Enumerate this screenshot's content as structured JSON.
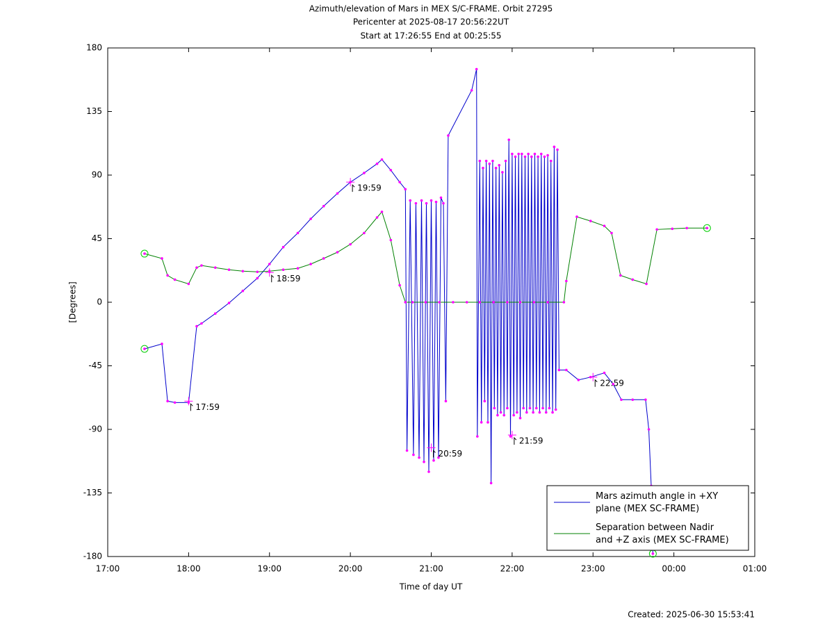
{
  "chart_data": {
    "type": "line",
    "title": [
      "Azimuth/elevation of Mars in MEX S/C-FRAME.  Orbit 27295",
      "Pericenter at 2025-08-17 20:56:22UT",
      "Start at 17:26:55 End at 00:25:55"
    ],
    "x_label": "Time of day UT",
    "y_label": "[Degrees]",
    "footer": "Created: 2025-06-30 15:53:41",
    "xlim": [
      17,
      25
    ],
    "xticks": [
      {
        "value": 17,
        "label": "17:00"
      },
      {
        "value": 18,
        "label": "18:00"
      },
      {
        "value": 19,
        "label": "19:00"
      },
      {
        "value": 20,
        "label": "20:00"
      },
      {
        "value": 21,
        "label": "21:00"
      },
      {
        "value": 22,
        "label": "22:00"
      },
      {
        "value": 23,
        "label": "23:00"
      },
      {
        "value": 24,
        "label": "00:00"
      },
      {
        "value": 25,
        "label": "01:00"
      }
    ],
    "ylim": [
      -180,
      180
    ],
    "yticks": [
      180,
      135,
      90,
      45,
      0,
      -45,
      -90,
      -135,
      -180
    ],
    "grid": false,
    "legend": "lower right",
    "marker_color": "#ff00ff",
    "series": [
      {
        "name": "Mars azimuth angle in +XY\nplane (MEX SC-FRAME)",
        "color": "#0000cc",
        "x": [
          17.455,
          17.67,
          17.74,
          17.83,
          18.0,
          18.1,
          18.16,
          18.33,
          18.5,
          18.67,
          18.85,
          19.0,
          19.17,
          19.35,
          19.51,
          19.67,
          19.84,
          20.0,
          20.17,
          20.33,
          20.39,
          20.5,
          20.61,
          20.68,
          20.7,
          20.74,
          20.78,
          20.81,
          20.85,
          20.88,
          20.91,
          20.94,
          20.97,
          21.0,
          21.03,
          21.06,
          21.09,
          21.12,
          21.15,
          21.18,
          21.21,
          21.5,
          21.56,
          21.57,
          21.6,
          21.62,
          21.64,
          21.66,
          21.68,
          21.7,
          21.72,
          21.74,
          21.76,
          21.78,
          21.8,
          21.82,
          21.84,
          21.86,
          21.88,
          21.9,
          21.92,
          21.94,
          21.96,
          21.98,
          22.0,
          22.02,
          22.04,
          22.06,
          22.08,
          22.1,
          22.12,
          22.14,
          22.16,
          22.18,
          22.2,
          22.22,
          22.24,
          22.26,
          22.28,
          22.3,
          22.32,
          22.34,
          22.36,
          22.38,
          22.4,
          22.42,
          22.44,
          22.46,
          22.48,
          22.5,
          22.52,
          22.54,
          22.56,
          22.58,
          22.67,
          22.82,
          22.97,
          23.14,
          23.25,
          23.35,
          23.49,
          23.65,
          23.69,
          23.72,
          23.74
        ],
        "values": [
          -33,
          -29.5,
          -70,
          -71,
          -71,
          -17,
          -15,
          -8,
          -0.5,
          8,
          17,
          27,
          39,
          49,
          59,
          68,
          77,
          85,
          91.5,
          98,
          101,
          93.5,
          85,
          80,
          -105,
          72,
          -108,
          70,
          -110,
          72,
          -113,
          70,
          -120,
          72,
          -112,
          71,
          -110,
          74,
          70,
          -70,
          118,
          150,
          165,
          -95,
          100,
          -85,
          95,
          -70,
          100,
          -85,
          98,
          -128,
          100,
          -75,
          95,
          -80,
          97,
          -78,
          92,
          -80,
          100,
          -75,
          115,
          -95,
          105,
          -80,
          103,
          -78,
          105,
          -82,
          105,
          -75,
          103,
          -78,
          105,
          -75,
          103,
          -78,
          105,
          -75,
          103,
          -78,
          105,
          -75,
          103,
          -78,
          104,
          -75,
          100,
          -78,
          110,
          -76,
          108,
          -48,
          -48,
          -55,
          -53,
          -50,
          -58,
          -69,
          -69,
          -69,
          -90,
          -130,
          -178
        ]
      },
      {
        "name": "Separation between Nadir\nand +Z axis (MEX SC-FRAME)",
        "color": "#008000",
        "x": [
          17.455,
          17.67,
          17.74,
          17.83,
          18.0,
          18.1,
          18.16,
          18.33,
          18.5,
          18.67,
          18.85,
          19.0,
          19.17,
          19.35,
          19.51,
          19.67,
          19.84,
          20.0,
          20.17,
          20.33,
          20.39,
          20.5,
          20.61,
          20.68,
          20.77,
          20.93,
          21.1,
          21.27,
          21.44,
          21.6,
          21.77,
          21.94,
          22.1,
          22.27,
          22.44,
          22.64,
          22.67,
          22.8,
          22.97,
          23.14,
          23.23,
          23.34,
          23.49,
          23.66,
          23.79,
          23.98,
          24.16,
          24.41
        ],
        "values": [
          34.4,
          31,
          19,
          16,
          13,
          24.5,
          26,
          24.5,
          23,
          22,
          21.5,
          22,
          23,
          24,
          27,
          31,
          35.4,
          41,
          49,
          60,
          64,
          44,
          12,
          0,
          0,
          0,
          0,
          0,
          0,
          0,
          0,
          0,
          0,
          0,
          0,
          0,
          15,
          60.5,
          57.5,
          54,
          49,
          19,
          16,
          13,
          51.5,
          52,
          52.5,
          52.5
        ]
      }
    ],
    "annotations": [
      {
        "text": "17:59",
        "x": 18.0,
        "y": -70
      },
      {
        "text": "18:59",
        "x": 19.0,
        "y": 21
      },
      {
        "text": "19:59",
        "x": 20.0,
        "y": 85
      },
      {
        "text": "20:59",
        "x": 21.0,
        "y": -103
      },
      {
        "text": "21:59",
        "x": 22.0,
        "y": -94
      },
      {
        "text": "22:59",
        "x": 23.0,
        "y": -53
      }
    ]
  }
}
